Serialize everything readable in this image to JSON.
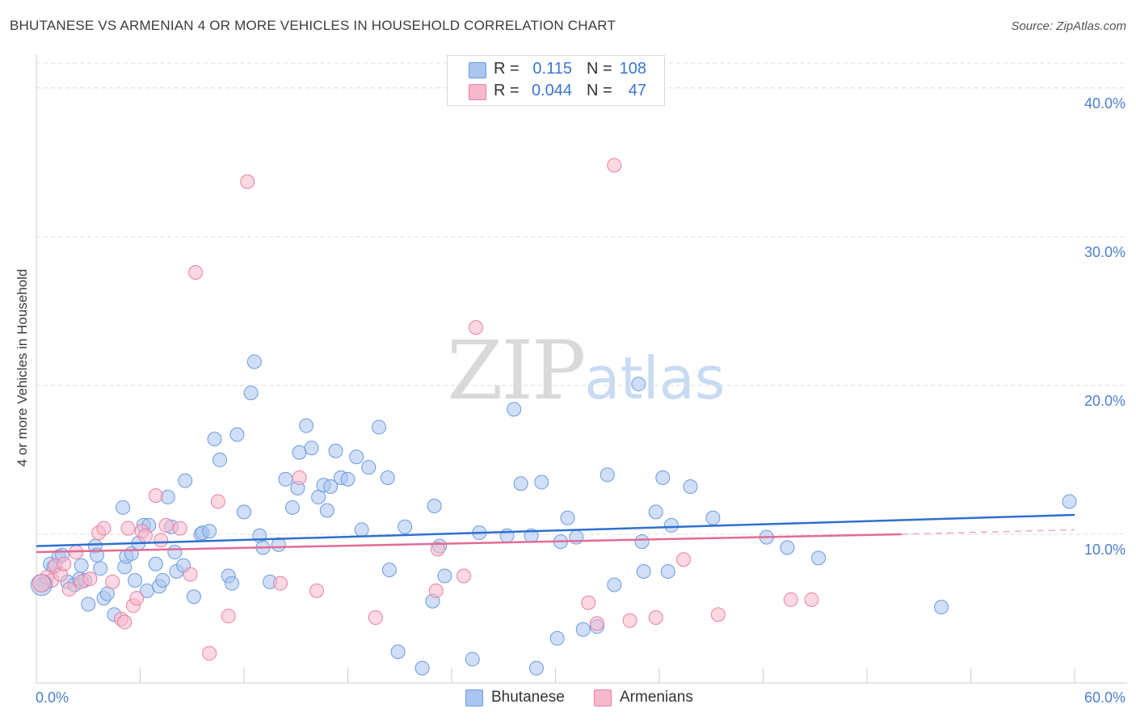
{
  "title": "BHUTANESE VS ARMENIAN 4 OR MORE VEHICLES IN HOUSEHOLD CORRELATION CHART",
  "source": "Source: ZipAtlas.com",
  "watermark": {
    "zip": "ZIP",
    "atlas": "atlas"
  },
  "legend": {
    "rows": [
      {
        "r_label": "R =",
        "r_value": "0.115",
        "n_label": "N =",
        "n_value": "108",
        "color": "#a9c5f0",
        "border": "#6b9be0"
      },
      {
        "r_label": "R =",
        "r_value": "0.044",
        "n_label": "N =",
        "n_value": "47",
        "color": "#f7b8cb",
        "border": "#e8809f"
      }
    ]
  },
  "bottom_legend": [
    {
      "label": "Bhutanese",
      "color": "#a9c5f0",
      "border": "#6b9be0"
    },
    {
      "label": "Armenians",
      "color": "#f7b8cb",
      "border": "#e8809f"
    }
  ],
  "chart_data": {
    "type": "scatter",
    "title": "BHUTANESE VS ARMENIAN 4 OR MORE VEHICLES IN HOUSEHOLD CORRELATION CHART",
    "xlabel": "",
    "ylabel": "4 or more Vehicles in Household",
    "xlim": [
      0,
      60
    ],
    "ylim": [
      0,
      42
    ],
    "x_tick_labels": [
      "0.0%",
      "60.0%"
    ],
    "y_ticks": [
      10,
      20,
      30,
      40
    ],
    "y_tick_labels": [
      "10.0%",
      "20.0%",
      "30.0%",
      "40.0%"
    ],
    "grid": true,
    "series": [
      {
        "name": "Bhutanese",
        "color": "#a9c5f0",
        "border": "#6b9be0",
        "trend": {
          "x": [
            0,
            60
          ],
          "y": [
            9.2,
            11.3
          ],
          "color": "#2f6fd0"
        },
        "points": [
          [
            0.5,
            6.7
          ],
          [
            0.8,
            8.0
          ],
          [
            1.0,
            7.8
          ],
          [
            1.3,
            8.5
          ],
          [
            1.5,
            8.6
          ],
          [
            1.8,
            6.8
          ],
          [
            2.2,
            6.6
          ],
          [
            2.5,
            7.0
          ],
          [
            2.6,
            7.9
          ],
          [
            2.8,
            6.9
          ],
          [
            3.0,
            5.3
          ],
          [
            3.4,
            9.2
          ],
          [
            3.5,
            8.6
          ],
          [
            3.7,
            7.7
          ],
          [
            3.9,
            5.7
          ],
          [
            4.1,
            6.0
          ],
          [
            4.5,
            4.6
          ],
          [
            5.0,
            11.8
          ],
          [
            5.1,
            7.8
          ],
          [
            5.2,
            8.5
          ],
          [
            5.5,
            8.7
          ],
          [
            5.7,
            6.9
          ],
          [
            5.9,
            9.4
          ],
          [
            6.2,
            10.6
          ],
          [
            6.4,
            6.2
          ],
          [
            6.5,
            10.6
          ],
          [
            6.9,
            8.0
          ],
          [
            7.1,
            6.5
          ],
          [
            7.3,
            6.9
          ],
          [
            7.6,
            12.5
          ],
          [
            7.8,
            10.5
          ],
          [
            8.0,
            8.8
          ],
          [
            8.1,
            7.5
          ],
          [
            8.5,
            7.9
          ],
          [
            8.6,
            13.6
          ],
          [
            9.1,
            5.8
          ],
          [
            9.5,
            10.0
          ],
          [
            9.6,
            10.1
          ],
          [
            10.0,
            10.2
          ],
          [
            10.3,
            16.4
          ],
          [
            10.6,
            15.0
          ],
          [
            11.1,
            7.2
          ],
          [
            11.3,
            6.7
          ],
          [
            11.6,
            16.7
          ],
          [
            12.0,
            11.5
          ],
          [
            12.4,
            19.5
          ],
          [
            12.6,
            21.6
          ],
          [
            12.9,
            9.9
          ],
          [
            13.1,
            9.1
          ],
          [
            13.5,
            6.8
          ],
          [
            14.0,
            9.3
          ],
          [
            14.4,
            13.7
          ],
          [
            14.8,
            11.8
          ],
          [
            15.1,
            13.1
          ],
          [
            15.2,
            15.5
          ],
          [
            15.6,
            17.3
          ],
          [
            15.9,
            15.8
          ],
          [
            16.3,
            12.5
          ],
          [
            16.6,
            13.3
          ],
          [
            16.8,
            11.6
          ],
          [
            17.0,
            13.2
          ],
          [
            17.3,
            15.6
          ],
          [
            17.6,
            13.8
          ],
          [
            18.0,
            13.7
          ],
          [
            18.5,
            15.2
          ],
          [
            18.8,
            10.3
          ],
          [
            19.2,
            14.5
          ],
          [
            19.8,
            17.2
          ],
          [
            20.3,
            13.8
          ],
          [
            20.4,
            7.6
          ],
          [
            20.9,
            2.1
          ],
          [
            21.3,
            10.5
          ],
          [
            22.3,
            1.0
          ],
          [
            22.9,
            5.5
          ],
          [
            23.0,
            11.9
          ],
          [
            23.3,
            9.2
          ],
          [
            23.6,
            7.2
          ],
          [
            25.2,
            1.6
          ],
          [
            25.6,
            10.1
          ],
          [
            27.2,
            9.9
          ],
          [
            27.6,
            18.4
          ],
          [
            28.0,
            13.4
          ],
          [
            28.6,
            9.9
          ],
          [
            28.9,
            1.0
          ],
          [
            29.2,
            13.5
          ],
          [
            30.1,
            3.0
          ],
          [
            30.3,
            9.5
          ],
          [
            30.7,
            11.1
          ],
          [
            31.2,
            9.8
          ],
          [
            31.6,
            3.6
          ],
          [
            32.4,
            3.8
          ],
          [
            33.0,
            14.0
          ],
          [
            33.4,
            6.6
          ],
          [
            34.8,
            20.1
          ],
          [
            35.0,
            9.5
          ],
          [
            35.1,
            7.5
          ],
          [
            35.8,
            11.5
          ],
          [
            36.2,
            13.8
          ],
          [
            36.5,
            7.5
          ],
          [
            36.7,
            10.6
          ],
          [
            37.8,
            13.2
          ],
          [
            39.1,
            11.1
          ],
          [
            42.2,
            9.8
          ],
          [
            43.4,
            9.1
          ],
          [
            45.2,
            8.4
          ],
          [
            52.3,
            5.1
          ],
          [
            59.7,
            12.2
          ]
        ]
      },
      {
        "name": "Armenians",
        "color": "#f7b8cb",
        "border": "#e8809f",
        "trend": {
          "x": [
            0,
            50
          ],
          "y": [
            8.8,
            10.0
          ],
          "color": "#e46b94"
        },
        "trend_extension": {
          "x": [
            50,
            60
          ],
          "y": [
            10.0,
            10.3
          ]
        },
        "points": [
          [
            0.3,
            6.6
          ],
          [
            0.6,
            7.1
          ],
          [
            0.9,
            6.9
          ],
          [
            1.1,
            7.9
          ],
          [
            1.4,
            7.3
          ],
          [
            1.6,
            8.0
          ],
          [
            1.9,
            6.3
          ],
          [
            2.3,
            8.8
          ],
          [
            2.6,
            6.8
          ],
          [
            3.1,
            7.0
          ],
          [
            3.6,
            10.1
          ],
          [
            3.9,
            10.4
          ],
          [
            4.4,
            6.8
          ],
          [
            4.9,
            4.3
          ],
          [
            5.1,
            4.1
          ],
          [
            5.3,
            10.4
          ],
          [
            5.6,
            5.2
          ],
          [
            5.8,
            5.7
          ],
          [
            6.1,
            10.2
          ],
          [
            6.3,
            9.9
          ],
          [
            6.9,
            12.6
          ],
          [
            7.2,
            9.6
          ],
          [
            7.5,
            10.6
          ],
          [
            8.3,
            10.4
          ],
          [
            8.9,
            7.3
          ],
          [
            9.2,
            27.6
          ],
          [
            10.0,
            2.0
          ],
          [
            10.5,
            12.2
          ],
          [
            11.1,
            4.5
          ],
          [
            12.2,
            33.7
          ],
          [
            14.1,
            6.7
          ],
          [
            15.2,
            13.8
          ],
          [
            16.2,
            6.2
          ],
          [
            19.6,
            4.4
          ],
          [
            23.1,
            6.2
          ],
          [
            23.2,
            9.0
          ],
          [
            24.7,
            7.2
          ],
          [
            25.4,
            23.9
          ],
          [
            31.9,
            5.4
          ],
          [
            32.4,
            4.0
          ],
          [
            33.4,
            34.8
          ],
          [
            34.3,
            4.2
          ],
          [
            35.8,
            4.4
          ],
          [
            37.4,
            8.3
          ],
          [
            39.4,
            4.6
          ],
          [
            43.6,
            5.6
          ],
          [
            44.8,
            5.6
          ]
        ]
      }
    ]
  }
}
